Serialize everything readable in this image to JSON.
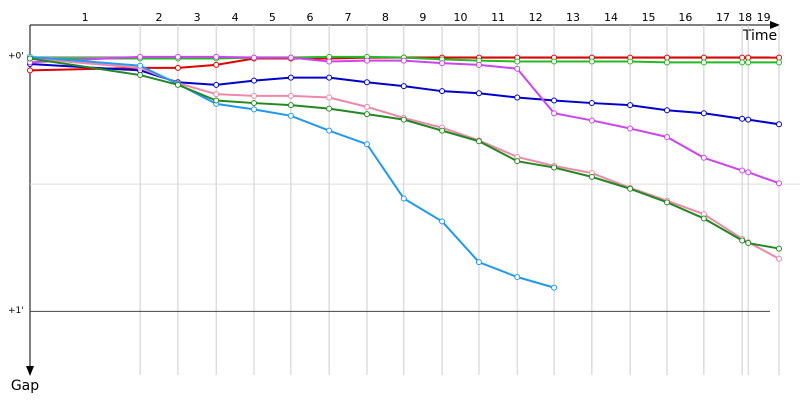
{
  "chart_data": {
    "type": "line",
    "x_label": "Time",
    "y_label": "Gap",
    "laps": [
      "1",
      "2",
      "3",
      "4",
      "5",
      "6",
      "7",
      "8",
      "9",
      "10",
      "11",
      "12",
      "13",
      "14",
      "15",
      "16",
      "17",
      "18",
      "19"
    ],
    "x": [
      0,
      23.6,
      31.7,
      39.9,
      48.0,
      55.9,
      64.1,
      72.2,
      80.1,
      88.3,
      96.2,
      104.4,
      112.3,
      120.4,
      128.6,
      136.5,
      144.4,
      152.6,
      153.9,
      160.5
    ],
    "xlim": [
      0,
      165
    ],
    "ylim": [
      -7.5,
      75
    ],
    "yticks": [
      {
        "value": 0,
        "label": "+0'"
      },
      {
        "value": 60,
        "label": "+1'"
      }
    ],
    "minor_grid": [
      30
    ],
    "series": [
      {
        "color": "#e00000",
        "values": [
          3.2,
          2.6,
          2.6,
          1.9,
          0.4,
          0.4,
          0.4,
          0.2,
          0.2,
          0.2,
          0.2,
          0.2,
          0.2,
          0.2,
          0.2,
          0.2,
          0.2,
          0.2,
          0.2,
          0.2
        ]
      },
      {
        "color": "#22bb22",
        "values": [
          0.4,
          0.4,
          0.4,
          0.4,
          0.2,
          0.2,
          0,
          0,
          0.2,
          0.6,
          0.9,
          1.1,
          1.1,
          1.1,
          1.1,
          1.3,
          1.3,
          1.3,
          1.3,
          1.3
        ]
      },
      {
        "color": "#0000cc",
        "values": [
          1.7,
          3.2,
          6.0,
          6.6,
          5.6,
          4.9,
          4.9,
          6.0,
          6.9,
          8.1,
          8.6,
          9.6,
          10.3,
          10.9,
          11.4,
          12.6,
          13.3,
          14.6,
          14.8,
          15.9
        ]
      },
      {
        "color": "#cc44ee",
        "values": [
          1.3,
          0,
          0,
          0,
          0.2,
          0.2,
          1.1,
          0.9,
          0.9,
          1.5,
          1.9,
          2.8,
          13.3,
          15.0,
          16.9,
          18.9,
          23.8,
          26.8,
          27.2,
          29.8
        ]
      },
      {
        "color": "#ee88aa",
        "values": [
          0.4,
          2.6,
          6.2,
          8.8,
          9.2,
          9.2,
          9.6,
          11.8,
          14.4,
          16.7,
          19.7,
          23.6,
          25.7,
          27.4,
          30.9,
          33.9,
          37.1,
          42.9,
          43.7,
          47.6
        ]
      },
      {
        "color": "#2299ee",
        "values": [
          0,
          2.1,
          6.4,
          11.1,
          12.4,
          13.9,
          17.4,
          20.6,
          33.4,
          38.8,
          48.4,
          51.9,
          54.4,
          null,
          null,
          null,
          null,
          null,
          null,
          null
        ]
      },
      {
        "color": "#228822",
        "values": [
          0.4,
          4.3,
          6.6,
          10.3,
          10.9,
          11.4,
          12.2,
          13.5,
          14.8,
          17.4,
          19.9,
          24.6,
          26.1,
          28.3,
          31.1,
          34.3,
          38.1,
          43.3,
          43.9,
          45.2
        ]
      }
    ]
  }
}
